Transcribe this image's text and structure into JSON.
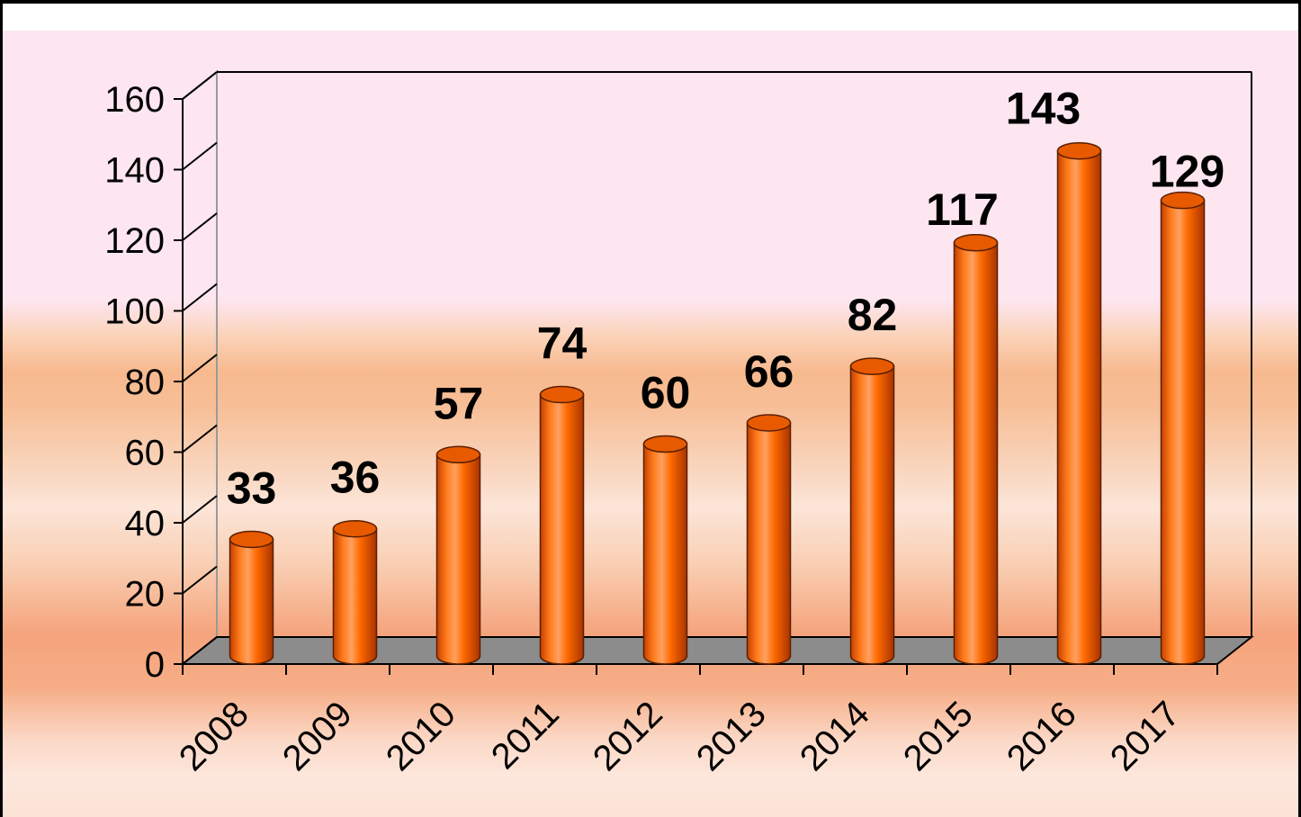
{
  "chart_data": {
    "type": "bar",
    "style": "3d-cylinder",
    "categories": [
      "2008",
      "2009",
      "2010",
      "2011",
      "2012",
      "2013",
      "2014",
      "2015",
      "2016",
      "2017"
    ],
    "values": [
      33,
      36,
      57,
      74,
      60,
      66,
      82,
      117,
      143,
      129
    ],
    "data_labels": [
      "33",
      "36",
      "57",
      "74",
      "60",
      "66",
      "82",
      "117",
      "143",
      "129"
    ],
    "ylim": [
      0,
      160
    ],
    "yticks": [
      0,
      20,
      40,
      60,
      80,
      100,
      120,
      140,
      160
    ],
    "ytick_labels": [
      "0",
      "20",
      "40",
      "60",
      "80",
      "100",
      "120",
      "140",
      "160"
    ],
    "grid": false,
    "legend": "none",
    "title": "",
    "xlabel": "",
    "ylabel": "",
    "colors": {
      "bar": "#ff6600",
      "bar_dark": "#b33800",
      "bar_light": "#ffb27a",
      "floor": "#8c8c8c",
      "axis": "#000000"
    }
  }
}
